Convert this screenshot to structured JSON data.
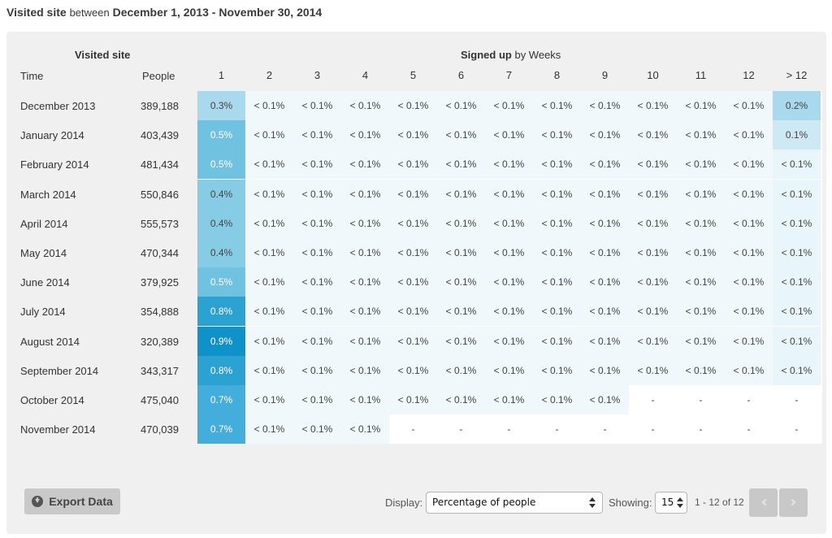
{
  "title": {
    "metric": "Visited site",
    "between_word": "between",
    "range": "December 1, 2013 - November 30, 2014"
  },
  "header": {
    "left_metric": "Visited site",
    "signed_up": "Signed up",
    "by_weeks": "by Weeks",
    "time": "Time",
    "people": "People"
  },
  "columns": [
    "1",
    "2",
    "3",
    "4",
    "5",
    "6",
    "7",
    "8",
    "9",
    "10",
    "11",
    "12",
    "> 12"
  ],
  "rows": [
    {
      "label": "December 2013",
      "people": "389,188",
      "cells": [
        "0.3%",
        "< 0.1%",
        "< 0.1%",
        "< 0.1%",
        "< 0.1%",
        "< 0.1%",
        "< 0.1%",
        "< 0.1%",
        "< 0.1%",
        "< 0.1%",
        "< 0.1%",
        "< 0.1%",
        "0.2%"
      ]
    },
    {
      "label": "January 2014",
      "people": "403,439",
      "cells": [
        "0.5%",
        "< 0.1%",
        "< 0.1%",
        "< 0.1%",
        "< 0.1%",
        "< 0.1%",
        "< 0.1%",
        "< 0.1%",
        "< 0.1%",
        "< 0.1%",
        "< 0.1%",
        "< 0.1%",
        "0.1%"
      ]
    },
    {
      "label": "February 2014",
      "people": "481,434",
      "cells": [
        "0.5%",
        "< 0.1%",
        "< 0.1%",
        "< 0.1%",
        "< 0.1%",
        "< 0.1%",
        "< 0.1%",
        "< 0.1%",
        "< 0.1%",
        "< 0.1%",
        "< 0.1%",
        "< 0.1%",
        "< 0.1%"
      ]
    },
    {
      "label": "March 2014",
      "people": "550,846",
      "cells": [
        "0.4%",
        "< 0.1%",
        "< 0.1%",
        "< 0.1%",
        "< 0.1%",
        "< 0.1%",
        "< 0.1%",
        "< 0.1%",
        "< 0.1%",
        "< 0.1%",
        "< 0.1%",
        "< 0.1%",
        "< 0.1%"
      ]
    },
    {
      "label": "April 2014",
      "people": "555,573",
      "cells": [
        "0.4%",
        "< 0.1%",
        "< 0.1%",
        "< 0.1%",
        "< 0.1%",
        "< 0.1%",
        "< 0.1%",
        "< 0.1%",
        "< 0.1%",
        "< 0.1%",
        "< 0.1%",
        "< 0.1%",
        "< 0.1%"
      ]
    },
    {
      "label": "May 2014",
      "people": "470,344",
      "cells": [
        "0.4%",
        "< 0.1%",
        "< 0.1%",
        "< 0.1%",
        "< 0.1%",
        "< 0.1%",
        "< 0.1%",
        "< 0.1%",
        "< 0.1%",
        "< 0.1%",
        "< 0.1%",
        "< 0.1%",
        "< 0.1%"
      ]
    },
    {
      "label": "June 2014",
      "people": "379,925",
      "cells": [
        "0.5%",
        "< 0.1%",
        "< 0.1%",
        "< 0.1%",
        "< 0.1%",
        "< 0.1%",
        "< 0.1%",
        "< 0.1%",
        "< 0.1%",
        "< 0.1%",
        "< 0.1%",
        "< 0.1%",
        "< 0.1%"
      ]
    },
    {
      "label": "July 2014",
      "people": "354,888",
      "cells": [
        "0.8%",
        "< 0.1%",
        "< 0.1%",
        "< 0.1%",
        "< 0.1%",
        "< 0.1%",
        "< 0.1%",
        "< 0.1%",
        "< 0.1%",
        "< 0.1%",
        "< 0.1%",
        "< 0.1%",
        "< 0.1%"
      ]
    },
    {
      "label": "August 2014",
      "people": "320,389",
      "cells": [
        "0.9%",
        "< 0.1%",
        "< 0.1%",
        "< 0.1%",
        "< 0.1%",
        "< 0.1%",
        "< 0.1%",
        "< 0.1%",
        "< 0.1%",
        "< 0.1%",
        "< 0.1%",
        "< 0.1%",
        "< 0.1%"
      ]
    },
    {
      "label": "September 2014",
      "people": "343,317",
      "cells": [
        "0.8%",
        "< 0.1%",
        "< 0.1%",
        "< 0.1%",
        "< 0.1%",
        "< 0.1%",
        "< 0.1%",
        "< 0.1%",
        "< 0.1%",
        "< 0.1%",
        "< 0.1%",
        "< 0.1%",
        "< 0.1%"
      ]
    },
    {
      "label": "October 2014",
      "people": "475,040",
      "cells": [
        "0.7%",
        "< 0.1%",
        "< 0.1%",
        "< 0.1%",
        "< 0.1%",
        "< 0.1%",
        "< 0.1%",
        "< 0.1%",
        "< 0.1%",
        "-",
        "-",
        "-",
        "-"
      ]
    },
    {
      "label": "November 2014",
      "people": "470,039",
      "cells": [
        "0.7%",
        "< 0.1%",
        "< 0.1%",
        "< 0.1%",
        "-",
        "-",
        "-",
        "-",
        "-",
        "-",
        "-",
        "-",
        "-"
      ]
    }
  ],
  "colors": {
    "col1": [
      "#a8d9ec",
      "#6fc2e0",
      "#6fc2e0",
      "#86cce5",
      "#86cce5",
      "#86cce5",
      "#6fc2e0",
      "#2aa2d2",
      "#0f92c9",
      "#2aa2d2",
      "#43addb",
      "#43addb"
    ],
    "low": "#f0f8fc",
    "gt12_dec": "#a8d9ec",
    "gt12_jan": "#cde9f4",
    "gt12_low": "#e8f5fa",
    "blank": "#ffffff"
  },
  "footer": {
    "export_label": "Export Data",
    "export_icon": "download-circle-icon",
    "display_label": "Display:",
    "display_value": "Percentage of people",
    "showing_label": "Showing:",
    "showing_value": "15",
    "range_text": "1 - 12 of 12"
  }
}
